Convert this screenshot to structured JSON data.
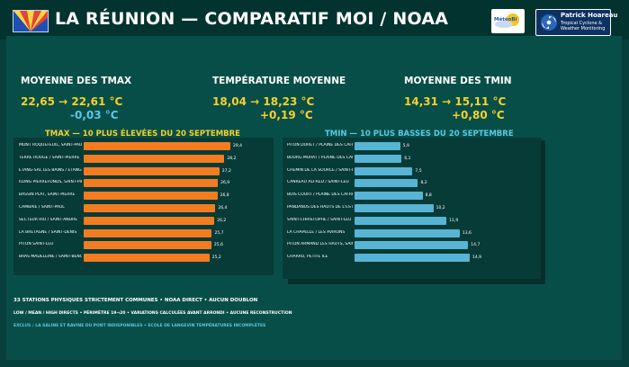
{
  "header": {
    "title": "LA RÉUNION — COMPARATIF MOI / NOAA",
    "logo_meteo_text": "MétéoBi",
    "logo_ph_name": "Patrick Hoareau",
    "logo_ph_line1": "Tropical Cyclone &",
    "logo_ph_line2": "Weather Monitoring"
  },
  "kpis": {
    "tmax": {
      "label": "MOYENNE DES TMAX",
      "value": "22,65 → 22,61 °C",
      "delta": "-0,03 °C"
    },
    "tmoy": {
      "label": "TEMPÉRATURE MOYENNE",
      "value": "18,04 → 18,23 °C",
      "delta": "+0,19 °C"
    },
    "tmin": {
      "label": "MOYENNE DES TMIN",
      "value": "14,31 → 15,11 °C",
      "delta": "+0,80 °C"
    }
  },
  "colors": {
    "background": "#063f3b",
    "accent_yellow": "#f5d12a",
    "tmax_title": "#f5d12a",
    "tmin_title": "#5ac8e6",
    "tmax_bar": "#f47c20",
    "tmin_bar": "#58b4d4"
  },
  "chart_data": [
    {
      "type": "bar",
      "orientation": "horizontal",
      "title": "TMAX — 10 PLUS ÉLEVÉES DU 20 SEPTEMBRE",
      "categories": [
        "MONT ROQUEFEUIL, SAINT-PAUL",
        "TERRE ROUGE / SAINT-PIERRE",
        "ETANG-SAL LES BAINS / ETANG-SAL",
        "ILONG PIERREFONDS, SAINT-PIERRE",
        "BASSIN PLAT, SAINT-PIERRE",
        "CAMBAIE / SAINT-PAUL",
        "SECTEUR RIO / SAINT-ANDRÉ",
        "LA BRETAGNE / SAINT-DENIS",
        "PITON SAINT-LEU",
        "BRAS MADELEINE / SAINT-BENOIT"
      ],
      "values": [
        29.4,
        28.2,
        27.2,
        26.9,
        26.8,
        26.4,
        26.2,
        25.7,
        25.6,
        25.2
      ],
      "labels": [
        "29,4",
        "28,2",
        "27,2",
        "26,9",
        "26,8",
        "26,4",
        "26,2",
        "25,7",
        "25,6",
        "25,2"
      ]
    },
    {
      "type": "bar",
      "orientation": "horizontal",
      "title": "TMIN — 10 PLUS BASSES DU 20 SEPTEMBRE",
      "categories": [
        "PITON DORET / PLAINE DES CAFRES",
        "BOURG MURAT / PLAINE DES CAFRES",
        "CHEMIN DE LA SOURCE / SAINT-LEU",
        "CANREAU ALFRED / SAINT-LEU",
        "BOIS COURT / PLAINE DES CAFRES",
        "PANDANUS DES HAUTS DE L'EST / LA PLAINE",
        "SAINT-CHRISTOPHE / SAINT-LEU",
        "LA CHAPELLE / LES AVIRONS",
        "PITON ARMAND LES HAUTS, SAINT-ANDRÉ",
        "CHARRU, PETITE ÎLE"
      ],
      "values": [
        5.9,
        6.1,
        7.5,
        8.2,
        8.8,
        10.2,
        11.9,
        13.6,
        14.7,
        14.9
      ],
      "labels": [
        "5,9",
        "6,1",
        "7,5",
        "8,2",
        "8,8",
        "10,2",
        "11,9",
        "13,6",
        "14,7",
        "14,9"
      ]
    }
  ],
  "footer": {
    "line1": "33 STATIONS PHYSIQUES STRICTEMENT COMMUNES • NOAA DIRECT • AUCUN DOUBLON",
    "line2": "LOW / MEAN / HIGH DIRECTS • PÉRIMÈTRE 19→20 • VARIATIONS CALCULÉES AVANT ARRONDI • AUCUNE RECONSTRUCTION",
    "line3": "EXCLUS : LA SALINE ET RAVINE DU PONT INDISPONIBLES • ECOLE DE LANGEVIN TEMPÉRATURES INCOMPLÈTES"
  }
}
